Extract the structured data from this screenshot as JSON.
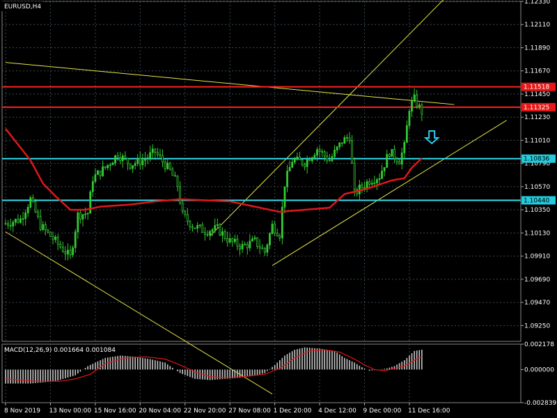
{
  "window": {
    "symbol_label": "EURUSD,H4"
  },
  "macd_panel": {
    "label": "MACD(12,26,9) 0.001664 0.001084"
  },
  "colors": {
    "background": "#000000",
    "grid": "#3a4a55",
    "candle": "#33cc33",
    "ma": "#e01818",
    "trendline": "#e8e84a",
    "resistance": "#ff2020",
    "support": "#33ddee",
    "label_red_bg": "#e81818",
    "label_cyan_bg": "#22ccdd",
    "axis_text": "#ffffff",
    "macd_hist": "#c8c8c8",
    "macd_signal": "#e01818",
    "arrow": "#33ccee"
  },
  "chart_data": {
    "type": "candlestick",
    "symbol": "EURUSD",
    "timeframe": "H4",
    "ylim": [
      1.091,
      1.1233
    ],
    "y_ticks": [
      "1.12330",
      "1.12110",
      "1.11890",
      "1.11670",
      "1.11450",
      "1.11230",
      "1.11010",
      "1.10790",
      "1.10570",
      "1.10350",
      "1.10130",
      "1.09910",
      "1.09690",
      "1.09470",
      "1.09250"
    ],
    "x_ticks": [
      "8 Nov 2019",
      "13 Nov 00:00",
      "15 Nov 16:00",
      "20 Nov 04:00",
      "22 Nov 20:00",
      "27 Nov 08:00",
      "1 Dec 20:00",
      "4 Dec 12:00",
      "9 Dec 00:00",
      "11 Dec 16:00"
    ],
    "x_tick_bars": [
      0,
      18,
      36,
      54,
      72,
      90,
      108,
      126,
      144,
      162
    ],
    "bar_count": 172,
    "price_path": [
      [
        0,
        1.1022
      ],
      [
        6,
        1.1026
      ],
      [
        10,
        1.1045
      ],
      [
        14,
        1.102
      ],
      [
        20,
        1.1005
      ],
      [
        26,
        1.099
      ],
      [
        29,
        1.103
      ],
      [
        33,
        1.1032
      ],
      [
        35,
        1.1065
      ],
      [
        40,
        1.1075
      ],
      [
        45,
        1.1088
      ],
      [
        50,
        1.1078
      ],
      [
        55,
        1.1082
      ],
      [
        60,
        1.109
      ],
      [
        66,
        1.1072
      ],
      [
        69,
        1.1058
      ],
      [
        71,
        1.103
      ],
      [
        75,
        1.102
      ],
      [
        80,
        1.1015
      ],
      [
        85,
        1.1017
      ],
      [
        90,
        1.1005
      ],
      [
        95,
        1.1
      ],
      [
        100,
        1.1005
      ],
      [
        104,
        1.0995
      ],
      [
        107,
        1.102
      ],
      [
        110,
        1.1012
      ],
      [
        112,
        1.106
      ],
      [
        115,
        1.1082
      ],
      [
        120,
        1.108
      ],
      [
        125,
        1.1093
      ],
      [
        130,
        1.1082
      ],
      [
        135,
        1.11
      ],
      [
        138,
        1.1105
      ],
      [
        140,
        1.105
      ],
      [
        142,
        1.1055
      ],
      [
        146,
        1.1063
      ],
      [
        150,
        1.1067
      ],
      [
        154,
        1.109
      ],
      [
        158,
        1.1082
      ],
      [
        160,
        1.1095
      ],
      [
        162,
        1.1132
      ],
      [
        164,
        1.114
      ],
      [
        167,
        1.1128
      ]
    ],
    "moving_average": [
      [
        0,
        1.1112
      ],
      [
        4,
        1.11
      ],
      [
        10,
        1.1082
      ],
      [
        15,
        1.106
      ],
      [
        20,
        1.1048
      ],
      [
        26,
        1.1035
      ],
      [
        32,
        1.1035
      ],
      [
        38,
        1.1038
      ],
      [
        50,
        1.104
      ],
      [
        60,
        1.1043
      ],
      [
        70,
        1.1045
      ],
      [
        80,
        1.1044
      ],
      [
        90,
        1.1043
      ],
      [
        100,
        1.1038
      ],
      [
        110,
        1.1033
      ],
      [
        120,
        1.1035
      ],
      [
        130,
        1.1037
      ],
      [
        136,
        1.105
      ],
      [
        145,
        1.1055
      ],
      [
        155,
        1.1063
      ],
      [
        160,
        1.1065
      ],
      [
        163,
        1.1075
      ],
      [
        167,
        1.1084
      ]
    ],
    "horizontal_levels": [
      {
        "price": 1.11518,
        "label": "1.11518",
        "kind": "resistance"
      },
      {
        "price": 1.11325,
        "label": "1.11325",
        "kind": "resistance"
      },
      {
        "price": 1.10836,
        "label": "1.10836",
        "kind": "support"
      },
      {
        "price": 1.1044,
        "label": "1.10440",
        "kind": "support"
      }
    ],
    "trendlines": [
      {
        "x1": 0,
        "y1": 1.1175,
        "x2": 180,
        "y2": 1.1135
      },
      {
        "x1": 0,
        "y1": 1.1014,
        "x2": 107,
        "y2": 1.086
      },
      {
        "x1": 82,
        "y1": 1.101,
        "x2": 180,
        "y2": 1.1245
      },
      {
        "x1": 107,
        "y1": 1.0982,
        "x2": 201,
        "y2": 1.112
      }
    ],
    "signal_arrow": {
      "bar": 171,
      "price": 1.1098,
      "direction": "down"
    },
    "macd": {
      "ylim": [
        -0.002839,
        0.002178
      ],
      "y_ticks": [
        "0.002178",
        "0.000000",
        "-0.002839"
      ],
      "histogram": [
        [
          0,
          -0.0012
        ],
        [
          10,
          -0.0012
        ],
        [
          20,
          -0.001
        ],
        [
          28,
          -0.0005
        ],
        [
          33,
          0.0003
        ],
        [
          40,
          0.001
        ],
        [
          46,
          0.0012
        ],
        [
          52,
          0.0011
        ],
        [
          58,
          0.0009
        ],
        [
          64,
          0.0006
        ],
        [
          70,
          -0.0003
        ],
        [
          76,
          -0.0008
        ],
        [
          82,
          -0.0009
        ],
        [
          88,
          -0.0008
        ],
        [
          94,
          -0.0007
        ],
        [
          100,
          -0.0005
        ],
        [
          104,
          -0.0003
        ],
        [
          108,
          0.0004
        ],
        [
          112,
          0.0012
        ],
        [
          116,
          0.0017
        ],
        [
          120,
          0.0019
        ],
        [
          126,
          0.0018
        ],
        [
          132,
          0.0016
        ],
        [
          136,
          0.001
        ],
        [
          140,
          0.0006
        ],
        [
          143,
          0.0002
        ],
        [
          146,
          -0.0001
        ],
        [
          150,
          0.0
        ],
        [
          153,
          0.0001
        ],
        [
          156,
          0.0003
        ],
        [
          160,
          0.0008
        ],
        [
          164,
          0.0016
        ],
        [
          167,
          0.0017
        ]
      ],
      "signal": [
        [
          0,
          -0.0008
        ],
        [
          12,
          -0.001
        ],
        [
          22,
          -0.001
        ],
        [
          28,
          -0.0008
        ],
        [
          34,
          -0.0004
        ],
        [
          40,
          0.0005
        ],
        [
          48,
          0.001
        ],
        [
          56,
          0.0011
        ],
        [
          64,
          0.0009
        ],
        [
          70,
          0.0004
        ],
        [
          76,
          -0.0002
        ],
        [
          82,
          -0.0006
        ],
        [
          88,
          -0.0007
        ],
        [
          96,
          -0.0006
        ],
        [
          104,
          -0.0004
        ],
        [
          110,
          0.0001
        ],
        [
          116,
          0.001
        ],
        [
          122,
          0.0016
        ],
        [
          128,
          0.0017
        ],
        [
          134,
          0.0015
        ],
        [
          140,
          0.0009
        ],
        [
          144,
          0.0004
        ],
        [
          148,
          0.0
        ],
        [
          152,
          -0.0001
        ],
        [
          156,
          0.0001
        ],
        [
          160,
          0.0003
        ],
        [
          164,
          0.0008
        ],
        [
          167,
          0.0011
        ]
      ]
    }
  }
}
